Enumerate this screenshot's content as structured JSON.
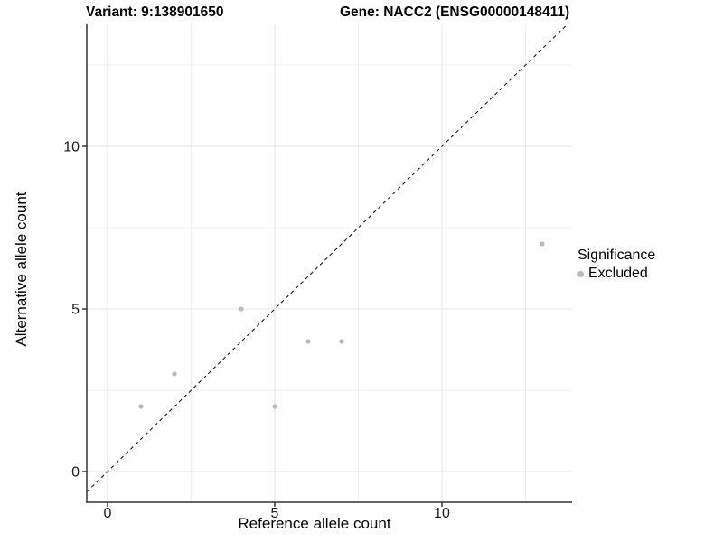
{
  "chart_data": {
    "type": "scatter",
    "title_left": "Variant: 9:138901650",
    "title_right": "Gene: NACC2 (ENSG00000148411)",
    "xlabel": "Reference allele count",
    "ylabel": "Alternative allele count",
    "xlim": [
      -0.622,
      13.892
    ],
    "ylim": [
      -0.944,
      13.75
    ],
    "x_ticks": [
      0,
      5,
      10
    ],
    "y_ticks": [
      0,
      5,
      10
    ],
    "x_minor_ticks": [
      2.5,
      7.5,
      12.5
    ],
    "y_minor_ticks": [
      2.5,
      7.5,
      12.5
    ],
    "grid": true,
    "identity_line": {
      "style": "dashed",
      "equation": "y = x"
    },
    "series": [
      {
        "name": "Excluded",
        "color": "#b9b9b9",
        "points": [
          [
            1,
            2
          ],
          [
            2,
            3
          ],
          [
            4,
            5
          ],
          [
            5,
            2
          ],
          [
            6,
            4
          ],
          [
            7,
            4
          ],
          [
            13,
            7
          ]
        ]
      }
    ],
    "legend": {
      "title": "Significance",
      "position": "right",
      "entries": [
        {
          "label": "Excluded",
          "color": "#b9b9b9"
        }
      ]
    },
    "style": {
      "background": "#ffffff",
      "grid_major": "#e4e4e4",
      "grid_minor": "#f1f1f1",
      "axis_line": "#333333",
      "tick_label": "#1a1a1a",
      "diagonal": "#1a1a1a"
    }
  }
}
